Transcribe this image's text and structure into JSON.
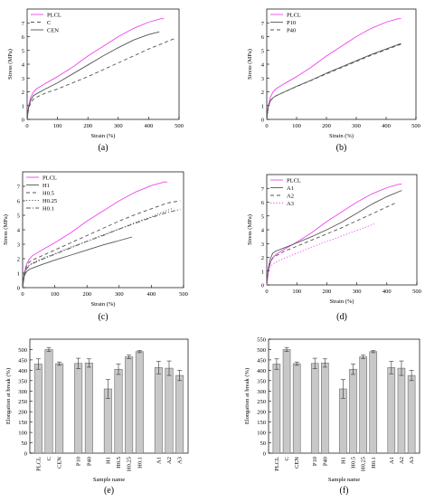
{
  "panel_labels": [
    "a",
    "b",
    "c",
    "d",
    "e",
    "f"
  ],
  "chart_data": [
    {
      "panel": "a",
      "type": "line",
      "xlabel": "Strain (%)",
      "ylabel": "Stress (MPa)",
      "xlim": [
        0,
        500
      ],
      "ylim": [
        0,
        8
      ],
      "xticks": [
        0,
        100,
        200,
        300,
        400,
        500
      ],
      "yticks": [
        0,
        1,
        2,
        3,
        4,
        5,
        6,
        7
      ],
      "legend_position": "top-left",
      "series": [
        {
          "name": "PLCL",
          "color": "#ee44ee",
          "dash": "solid",
          "x": [
            0,
            5,
            12,
            20,
            30,
            60,
            100,
            150,
            200,
            250,
            300,
            350,
            400,
            440,
            450
          ],
          "y": [
            0,
            1.0,
            1.6,
            1.95,
            2.2,
            2.6,
            3.1,
            3.8,
            4.6,
            5.3,
            6.0,
            6.6,
            7.05,
            7.3,
            7.3
          ]
        },
        {
          "name": "C",
          "color": "#555555",
          "dash": "dashed",
          "x": [
            0,
            5,
            12,
            20,
            30,
            60,
            100,
            150,
            200,
            250,
            300,
            350,
            400,
            450,
            490
          ],
          "y": [
            0,
            0.8,
            1.2,
            1.45,
            1.6,
            1.9,
            2.2,
            2.65,
            3.1,
            3.6,
            4.1,
            4.6,
            5.1,
            5.55,
            5.9
          ]
        },
        {
          "name": "CEN",
          "color": "#555555",
          "dash": "solid",
          "x": [
            0,
            5,
            12,
            20,
            30,
            60,
            100,
            150,
            200,
            250,
            300,
            350,
            400,
            435
          ],
          "y": [
            0,
            0.9,
            1.4,
            1.7,
            1.85,
            2.2,
            2.65,
            3.3,
            3.95,
            4.6,
            5.2,
            5.75,
            6.15,
            6.35
          ]
        }
      ]
    },
    {
      "panel": "b",
      "type": "line",
      "xlabel": "Strain (%)",
      "ylabel": "Stress (MPa)",
      "xlim": [
        0,
        500
      ],
      "ylim": [
        0,
        8
      ],
      "xticks": [
        0,
        100,
        200,
        300,
        400,
        500
      ],
      "yticks": [
        0,
        1,
        2,
        3,
        4,
        5,
        6,
        7
      ],
      "legend_position": "top-left",
      "series": [
        {
          "name": "PLCL",
          "color": "#ee44ee",
          "dash": "solid",
          "x": [
            0,
            5,
            12,
            20,
            30,
            60,
            100,
            150,
            200,
            250,
            300,
            350,
            400,
            440,
            450
          ],
          "y": [
            0,
            1.0,
            1.6,
            1.95,
            2.2,
            2.6,
            3.1,
            3.8,
            4.6,
            5.3,
            6.0,
            6.6,
            7.05,
            7.3,
            7.3
          ]
        },
        {
          "name": "P10",
          "color": "#555555",
          "dash": "solid",
          "x": [
            0,
            5,
            12,
            20,
            30,
            60,
            100,
            150,
            200,
            250,
            300,
            350,
            400,
            450
          ],
          "y": [
            0,
            0.9,
            1.35,
            1.55,
            1.7,
            2.0,
            2.4,
            2.85,
            3.35,
            3.8,
            4.25,
            4.7,
            5.1,
            5.5
          ]
        },
        {
          "name": "P40",
          "color": "#555555",
          "dash": "dashed",
          "x": [
            0,
            5,
            12,
            20,
            30,
            60,
            100,
            150,
            200,
            250,
            300,
            350,
            400,
            450
          ],
          "y": [
            0,
            0.9,
            1.35,
            1.55,
            1.7,
            2.0,
            2.38,
            2.83,
            3.3,
            3.75,
            4.2,
            4.65,
            5.05,
            5.45
          ]
        }
      ]
    },
    {
      "panel": "c",
      "type": "line",
      "xlabel": "Strain (%)",
      "ylabel": "Stress (MPa)",
      "xlim": [
        0,
        500
      ],
      "ylim": [
        0,
        8
      ],
      "xticks": [
        0,
        100,
        200,
        300,
        400,
        500
      ],
      "yticks": [
        0,
        1,
        2,
        3,
        4,
        5,
        6,
        7
      ],
      "legend_position": "top-left",
      "series": [
        {
          "name": "PLCL",
          "color": "#ee44ee",
          "dash": "solid",
          "x": [
            0,
            5,
            12,
            20,
            30,
            60,
            100,
            150,
            200,
            250,
            300,
            350,
            400,
            440,
            450
          ],
          "y": [
            0,
            1.0,
            1.6,
            1.95,
            2.2,
            2.6,
            3.1,
            3.8,
            4.6,
            5.3,
            6.0,
            6.6,
            7.05,
            7.3,
            7.3
          ]
        },
        {
          "name": "H1",
          "color": "#555555",
          "dash": "solid",
          "x": [
            0,
            5,
            12,
            20,
            30,
            60,
            100,
            150,
            200,
            250,
            300,
            340
          ],
          "y": [
            0,
            0.8,
            1.1,
            1.25,
            1.35,
            1.6,
            1.9,
            2.25,
            2.6,
            2.95,
            3.25,
            3.5
          ]
        },
        {
          "name": "H0.5",
          "color": "#555555",
          "dash": "dashed",
          "x": [
            0,
            5,
            12,
            20,
            30,
            60,
            100,
            150,
            200,
            250,
            300,
            350,
            400,
            450,
            490
          ],
          "y": [
            0,
            1.0,
            1.5,
            1.75,
            1.9,
            2.2,
            2.6,
            3.1,
            3.6,
            4.1,
            4.6,
            5.05,
            5.45,
            5.85,
            6.0
          ]
        },
        {
          "name": "H0.25",
          "color": "#555555",
          "dash": "dotted",
          "x": [
            0,
            5,
            12,
            20,
            30,
            60,
            100,
            150,
            200,
            250,
            300,
            350,
            400,
            450,
            470
          ],
          "y": [
            0,
            0.9,
            1.35,
            1.55,
            1.7,
            2.0,
            2.35,
            2.8,
            3.2,
            3.65,
            4.05,
            4.5,
            4.9,
            5.35,
            5.5
          ]
        },
        {
          "name": "H0.1",
          "color": "#555555",
          "dash": "dashdot",
          "x": [
            0,
            5,
            12,
            20,
            30,
            60,
            100,
            150,
            200,
            250,
            300,
            350,
            400,
            450,
            490
          ],
          "y": [
            0,
            0.9,
            1.3,
            1.5,
            1.65,
            1.95,
            2.3,
            2.75,
            3.2,
            3.6,
            4.05,
            4.45,
            4.85,
            5.2,
            5.4
          ]
        }
      ]
    },
    {
      "panel": "d",
      "type": "line",
      "xlabel": "Strain (%)",
      "ylabel": "Stress (MPa)",
      "xlim": [
        0,
        500
      ],
      "ylim": [
        0,
        8
      ],
      "xticks": [
        0,
        100,
        200,
        300,
        400,
        500
      ],
      "yticks": [
        0,
        1,
        2,
        3,
        4,
        5,
        6,
        7
      ],
      "legend_position": "top-left",
      "series": [
        {
          "name": "PLCL",
          "color": "#ee44ee",
          "dash": "solid",
          "x": [
            0,
            5,
            12,
            20,
            30,
            60,
            100,
            150,
            200,
            250,
            300,
            350,
            400,
            440,
            450
          ],
          "y": [
            0,
            1.0,
            1.6,
            1.95,
            2.2,
            2.6,
            3.1,
            3.8,
            4.6,
            5.3,
            6.0,
            6.6,
            7.05,
            7.3,
            7.3
          ]
        },
        {
          "name": "A1",
          "color": "#555555",
          "dash": "solid",
          "x": [
            0,
            5,
            12,
            20,
            30,
            60,
            100,
            150,
            200,
            250,
            300,
            350,
            400,
            450
          ],
          "y": [
            0,
            1.2,
            1.9,
            2.3,
            2.45,
            2.7,
            3.05,
            3.5,
            4.0,
            4.55,
            5.2,
            5.85,
            6.4,
            6.85
          ]
        },
        {
          "name": "A2",
          "color": "#555555",
          "dash": "dashed",
          "x": [
            0,
            5,
            12,
            20,
            30,
            60,
            100,
            150,
            200,
            250,
            300,
            350,
            400,
            435
          ],
          "y": [
            0,
            1.1,
            1.7,
            1.95,
            2.1,
            2.45,
            2.8,
            3.25,
            3.7,
            4.15,
            4.65,
            5.15,
            5.65,
            6.0
          ]
        },
        {
          "name": "A3",
          "color": "#ee44ee",
          "dash": "dotted",
          "x": [
            0,
            5,
            12,
            20,
            30,
            60,
            100,
            150,
            200,
            250,
            300,
            350,
            360
          ],
          "y": [
            0,
            0.9,
            1.3,
            1.5,
            1.65,
            1.95,
            2.3,
            2.75,
            3.15,
            3.55,
            3.95,
            4.35,
            4.45
          ]
        }
      ]
    },
    {
      "panel": "e",
      "type": "bar",
      "xlabel": "Sample name",
      "ylabel": "Elongation at break (%)",
      "ylim": [
        0,
        550
      ],
      "yticks": [
        0,
        50,
        100,
        150,
        200,
        250,
        300,
        350,
        400,
        450,
        500
      ],
      "bar_color": "#c8c8c8",
      "groups": [
        [
          "PLCL",
          "C",
          "CEN"
        ],
        [
          "P10",
          "P40"
        ],
        [
          "H1",
          "H0.5",
          "H0.25",
          "H0.1"
        ],
        [
          "A1",
          "A2",
          "A3"
        ]
      ],
      "categories": [
        "PLCL",
        "C",
        "CEN",
        "P10",
        "P40",
        "H1",
        "H0.5",
        "H0.25",
        "H0.1",
        "A1",
        "A2",
        "A3"
      ],
      "values": [
        430,
        500,
        432,
        433,
        435,
        310,
        405,
        465,
        490,
        413,
        410,
        375
      ],
      "errors": [
        25,
        10,
        8,
        25,
        20,
        45,
        25,
        8,
        5,
        30,
        35,
        25
      ]
    },
    {
      "panel": "f",
      "type": "bar",
      "xlabel": "Sample name",
      "ylabel": "Elongation at break (%)",
      "ylim": [
        0,
        550
      ],
      "yticks": [
        0,
        50,
        100,
        150,
        200,
        250,
        300,
        350,
        400,
        450,
        500,
        550
      ],
      "bar_color": "#c8c8c8",
      "groups": [
        [
          "PLCL",
          "C",
          "CEN"
        ],
        [
          "P10",
          "P40"
        ],
        [
          "H1",
          "H0.5",
          "H0.25",
          "H0.1"
        ],
        [
          "A1",
          "A2",
          "A3"
        ]
      ],
      "categories": [
        "PLCL",
        "C",
        "CEN",
        "P10",
        "P40",
        "H1",
        "H0.5",
        "H0.25",
        "H0.1",
        "A1",
        "A2",
        "A3"
      ],
      "values": [
        430,
        500,
        432,
        433,
        435,
        310,
        405,
        465,
        490,
        413,
        410,
        375
      ],
      "errors": [
        25,
        10,
        8,
        25,
        20,
        45,
        25,
        8,
        5,
        30,
        35,
        25
      ]
    }
  ]
}
